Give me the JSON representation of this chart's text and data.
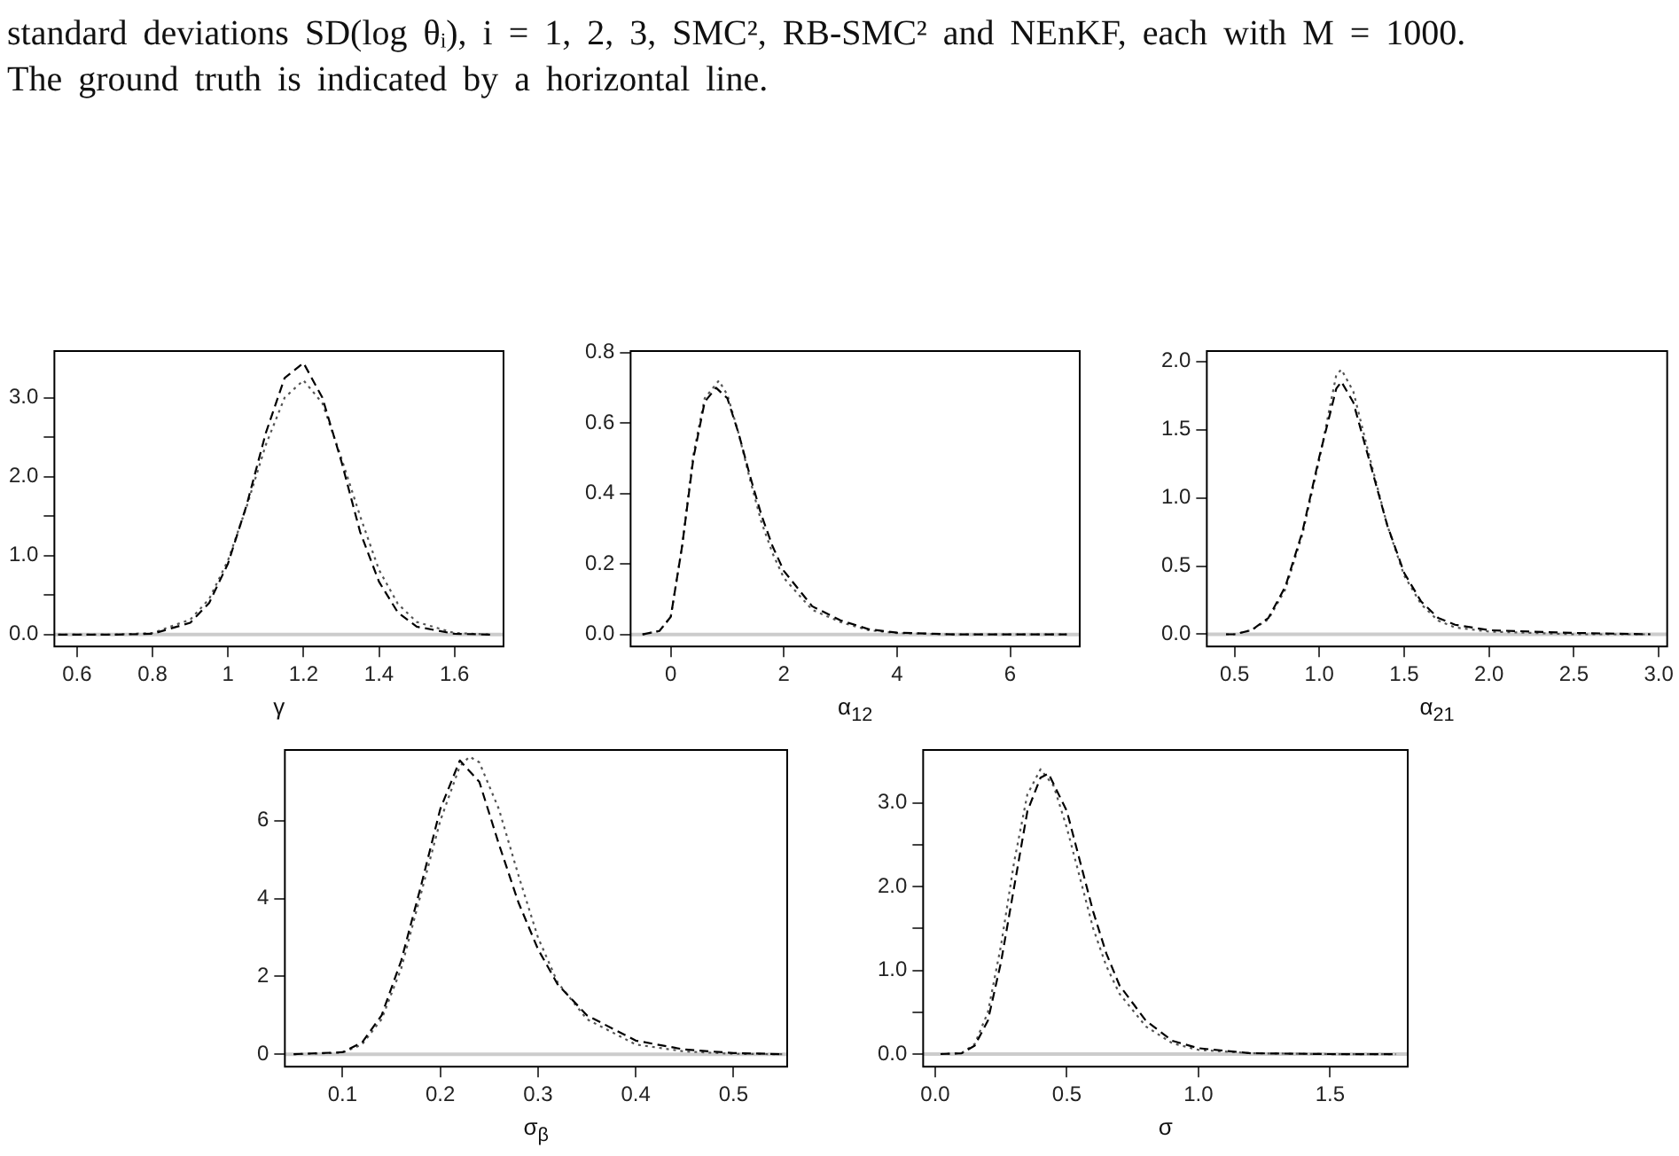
{
  "chart_data": [
    {
      "type": "line",
      "xlabel": "γ",
      "annotations": [
        "standard deviations SD(log θᵢ), i = 1, 2, 3, SMC², RB-SMC² and NEnKF, each with M = 1000. The ground truth is indicated by a horizontal line."
      ],
      "marker": "none",
      "grid": false,
      "xlim": [
        0.54,
        1.73
      ],
      "ylim": [
        -0.15,
        3.59
      ],
      "xticks": [
        0.6,
        0.8,
        1.0,
        1.2,
        1.4,
        1.6
      ],
      "yticks": [
        {
          "value": 0,
          "label": "0.0"
        },
        {
          "value": 0.5,
          "label": null
        },
        {
          "value": 1,
          "label": "1.0"
        },
        {
          "value": 1.5,
          "label": null
        },
        {
          "value": 2,
          "label": "2.0"
        },
        {
          "value": 2.5,
          "label": null
        },
        {
          "value": 3,
          "label": "3.0"
        }
      ],
      "ref_lines": [
        {
          "axis": "y",
          "value": 0,
          "color": "#cccccc"
        }
      ],
      "series": [
        {
          "color": "#000000",
          "line_style": "dashed",
          "x": [
            0.55,
            0.7,
            0.8,
            0.9,
            0.95,
            1.0,
            1.05,
            1.1,
            1.15,
            1.2,
            1.25,
            1.3,
            1.35,
            1.4,
            1.45,
            1.5,
            1.6,
            1.7
          ],
          "values": [
            0,
            0,
            0.01,
            0.15,
            0.4,
            0.9,
            1.65,
            2.55,
            3.25,
            3.44,
            3.0,
            2.2,
            1.3,
            0.67,
            0.28,
            0.1,
            0.01,
            0
          ]
        },
        {
          "color": "#555555",
          "line_style": "dotted",
          "x": [
            0.55,
            0.7,
            0.8,
            0.9,
            0.95,
            1.0,
            1.05,
            1.1,
            1.15,
            1.2,
            1.25,
            1.3,
            1.35,
            1.4,
            1.45,
            1.5,
            1.6,
            1.7
          ],
          "values": [
            0,
            0,
            0.02,
            0.19,
            0.45,
            0.94,
            1.63,
            2.4,
            3.0,
            3.22,
            2.93,
            2.24,
            1.5,
            0.82,
            0.39,
            0.16,
            0.02,
            0
          ]
        }
      ]
    },
    {
      "type": "line",
      "xlabel": "α$_{12}$",
      "marker": "none",
      "grid": false,
      "xlim": [
        -0.71,
        7.23
      ],
      "ylim": [
        -0.034,
        0.804
      ],
      "xticks": [
        0,
        2,
        4,
        6
      ],
      "yticks": [
        {
          "value": 0,
          "label": "0.0"
        },
        {
          "value": 0.2,
          "label": "0.2"
        },
        {
          "value": 0.4,
          "label": "0.4"
        },
        {
          "value": 0.6,
          "label": "0.6"
        },
        {
          "value": 0.8,
          "label": "0.8"
        }
      ],
      "ref_lines": [
        {
          "axis": "y",
          "value": 0,
          "color": "#cccccc"
        }
      ],
      "series": [
        {
          "color": "#000000",
          "line_style": "dashed",
          "x": [
            -0.5,
            -0.2,
            0,
            0.2,
            0.4,
            0.6,
            0.8,
            1.0,
            1.2,
            1.4,
            1.6,
            1.8,
            2.0,
            2.5,
            3,
            3.5,
            4,
            5,
            6,
            7
          ],
          "values": [
            0,
            0.01,
            0.05,
            0.25,
            0.5,
            0.66,
            0.7,
            0.67,
            0.57,
            0.45,
            0.34,
            0.25,
            0.18,
            0.08,
            0.04,
            0.015,
            0.005,
            0,
            0,
            0
          ]
        },
        {
          "color": "#555555",
          "line_style": "dotted",
          "x": [
            -0.5,
            -0.2,
            0,
            0.2,
            0.4,
            0.6,
            0.85,
            1.0,
            1.2,
            1.4,
            1.6,
            1.8,
            2.0,
            2.5,
            3,
            3.5,
            4,
            5,
            6,
            7
          ],
          "values": [
            0,
            0.01,
            0.05,
            0.25,
            0.51,
            0.67,
            0.72,
            0.68,
            0.57,
            0.44,
            0.32,
            0.23,
            0.16,
            0.07,
            0.035,
            0.012,
            0.004,
            0,
            0,
            0
          ]
        }
      ]
    },
    {
      "type": "line",
      "xlabel": "α$_{21}$",
      "marker": "none",
      "grid": false,
      "xlim": [
        0.337,
        3.05
      ],
      "ylim": [
        -0.089,
        2.075
      ],
      "xticks": [
        {
          "value": 0.5,
          "label": "0.5"
        },
        {
          "value": 1,
          "label": "1.0"
        },
        {
          "value": 1.5,
          "label": "1.5"
        },
        {
          "value": 2,
          "label": "2.0"
        },
        {
          "value": 2.5,
          "label": "2.5"
        },
        {
          "value": 3,
          "label": "3.0"
        }
      ],
      "yticks": [
        {
          "value": 0,
          "label": "0.0"
        },
        {
          "value": 0.5,
          "label": "0.5"
        },
        {
          "value": 1,
          "label": "1.0"
        },
        {
          "value": 1.5,
          "label": "1.5"
        },
        {
          "value": 2,
          "label": "2.0"
        }
      ],
      "ref_lines": [
        {
          "axis": "y",
          "value": 0,
          "color": "#cccccc"
        }
      ],
      "series": [
        {
          "color": "#000000",
          "line_style": "dashed",
          "x": [
            0.45,
            0.5,
            0.6,
            0.7,
            0.8,
            0.9,
            1.0,
            1.1,
            1.13,
            1.2,
            1.3,
            1.4,
            1.5,
            1.6,
            1.7,
            1.8,
            2.0,
            2.5,
            2.95
          ],
          "values": [
            0,
            0,
            0.03,
            0.12,
            0.35,
            0.75,
            1.3,
            1.8,
            1.85,
            1.7,
            1.25,
            0.8,
            0.45,
            0.24,
            0.12,
            0.07,
            0.03,
            0.01,
            0
          ]
        },
        {
          "color": "#555555",
          "line_style": "dotted",
          "x": [
            0.45,
            0.5,
            0.6,
            0.7,
            0.8,
            0.9,
            1.0,
            1.1,
            1.13,
            1.2,
            1.3,
            1.4,
            1.5,
            1.6,
            1.7,
            1.8,
            2.0,
            2.5,
            2.95
          ],
          "values": [
            0,
            0,
            0.03,
            0.11,
            0.33,
            0.73,
            1.28,
            1.9,
            1.94,
            1.78,
            1.28,
            0.8,
            0.43,
            0.22,
            0.1,
            0.05,
            0.02,
            0,
            0
          ]
        }
      ]
    },
    {
      "type": "line",
      "xlabel": "σ$_{β}$",
      "marker": "none",
      "grid": false,
      "xlim": [
        0.041,
        0.555
      ],
      "ylim": [
        -0.32,
        7.82
      ],
      "xticks": [
        0.1,
        0.2,
        0.3,
        0.4,
        0.5
      ],
      "yticks": [
        0,
        2,
        4,
        6
      ],
      "ref_lines": [
        {
          "axis": "y",
          "value": 0,
          "color": "#cccccc"
        }
      ],
      "series": [
        {
          "color": "#000000",
          "line_style": "dashed",
          "x": [
            0.05,
            0.1,
            0.12,
            0.14,
            0.16,
            0.18,
            0.2,
            0.22,
            0.24,
            0.26,
            0.28,
            0.3,
            0.32,
            0.35,
            0.4,
            0.45,
            0.5,
            0.55
          ],
          "values": [
            0,
            0.05,
            0.3,
            1.0,
            2.4,
            4.3,
            6.3,
            7.55,
            7.0,
            5.4,
            3.9,
            2.7,
            1.8,
            1.0,
            0.35,
            0.12,
            0.03,
            0
          ]
        },
        {
          "color": "#555555",
          "line_style": "dotted",
          "x": [
            0.05,
            0.1,
            0.12,
            0.14,
            0.16,
            0.18,
            0.2,
            0.22,
            0.23,
            0.24,
            0.26,
            0.28,
            0.3,
            0.32,
            0.35,
            0.4,
            0.45,
            0.5,
            0.55
          ],
          "values": [
            0,
            0.04,
            0.25,
            0.9,
            2.2,
            4.1,
            6.0,
            7.4,
            7.65,
            7.5,
            6.3,
            4.6,
            3.0,
            1.85,
            0.9,
            0.25,
            0.07,
            0.01,
            0
          ]
        }
      ]
    },
    {
      "type": "line",
      "xlabel": "σ",
      "marker": "none",
      "grid": false,
      "xlim": [
        -0.046,
        1.795
      ],
      "ylim": [
        -0.15,
        3.63
      ],
      "xticks": [
        {
          "value": 0,
          "label": "0.0"
        },
        {
          "value": 0.5,
          "label": "0.5"
        },
        {
          "value": 1,
          "label": "1.0"
        },
        {
          "value": 1.5,
          "label": "1.5"
        }
      ],
      "yticks": [
        {
          "value": 0,
          "label": "0.0"
        },
        {
          "value": 0.5,
          "label": null
        },
        {
          "value": 1,
          "label": "1.0"
        },
        {
          "value": 1.5,
          "label": null
        },
        {
          "value": 2,
          "label": "2.0"
        },
        {
          "value": 2.5,
          "label": null
        },
        {
          "value": 3,
          "label": "3.0"
        }
      ],
      "ref_lines": [
        {
          "axis": "y",
          "value": 0,
          "color": "#cccccc"
        }
      ],
      "series": [
        {
          "color": "#000000",
          "line_style": "dashed",
          "x": [
            0.02,
            0.1,
            0.15,
            0.2,
            0.25,
            0.3,
            0.35,
            0.4,
            0.43,
            0.5,
            0.55,
            0.6,
            0.65,
            0.7,
            0.8,
            0.9,
            1.0,
            1.2,
            1.5,
            1.75
          ],
          "values": [
            0,
            0.01,
            0.1,
            0.4,
            1.1,
            2.0,
            2.9,
            3.3,
            3.35,
            2.9,
            2.3,
            1.7,
            1.2,
            0.82,
            0.4,
            0.16,
            0.07,
            0.01,
            0,
            0
          ]
        },
        {
          "color": "#555555",
          "line_style": "dotted",
          "x": [
            0.02,
            0.1,
            0.15,
            0.2,
            0.25,
            0.3,
            0.35,
            0.4,
            0.45,
            0.5,
            0.55,
            0.6,
            0.65,
            0.7,
            0.8,
            0.9,
            1.0,
            1.2,
            1.5,
            1.75
          ],
          "values": [
            0,
            0.01,
            0.12,
            0.5,
            1.3,
            2.3,
            3.1,
            3.4,
            3.2,
            2.7,
            2.1,
            1.5,
            1.05,
            0.72,
            0.33,
            0.13,
            0.05,
            0.01,
            0,
            0
          ]
        }
      ]
    }
  ]
}
